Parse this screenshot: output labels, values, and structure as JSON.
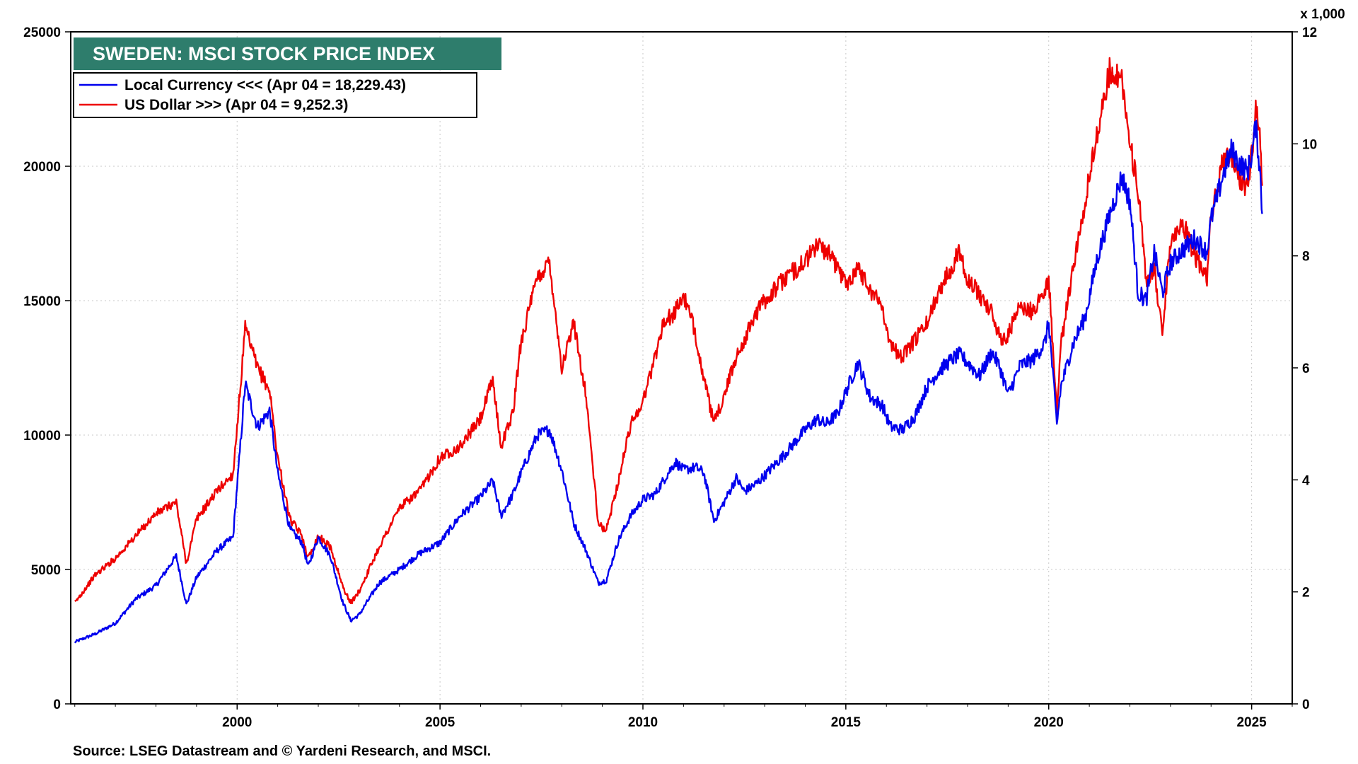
{
  "chart_data": {
    "type": "line",
    "title": "SWEDEN: MSCI STOCK PRICE INDEX",
    "source": "Source: LSEG Datastream and © Yardeni Research, and MSCI.",
    "x_range": [
      1995.9,
      2026.0
    ],
    "x_ticks": [
      "2000",
      "2005",
      "2010",
      "2015",
      "2020",
      "2025"
    ],
    "left_axis": {
      "range": [
        0,
        25000
      ],
      "ticks": [
        "0",
        "5000",
        "10000",
        "15000",
        "20000",
        "25000"
      ]
    },
    "right_axis": {
      "range": [
        0,
        12
      ],
      "unit_label": "x 1,000",
      "ticks": [
        "0",
        "2",
        "4",
        "6",
        "8",
        "10",
        "12"
      ]
    },
    "grid": true,
    "legend_placement": "top-left",
    "series": [
      {
        "name": "Local Currency <<< (Apr 04 = 18,229.43)",
        "axis": "left",
        "color": "#0000ee",
        "x": [
          1996.0,
          1996.5,
          1997.0,
          1997.5,
          1998.0,
          1998.5,
          1998.75,
          1999.0,
          1999.5,
          1999.9,
          2000.2,
          2000.5,
          2000.8,
          2001.0,
          2001.3,
          2001.6,
          2001.75,
          2002.0,
          2002.3,
          2002.6,
          2002.8,
          2003.0,
          2003.5,
          2004.0,
          2004.5,
          2005.0,
          2005.5,
          2006.0,
          2006.3,
          2006.5,
          2006.8,
          2007.0,
          2007.4,
          2007.7,
          2008.0,
          2008.3,
          2008.6,
          2008.9,
          2009.1,
          2009.4,
          2009.7,
          2010.0,
          2010.3,
          2010.5,
          2010.8,
          2011.0,
          2011.3,
          2011.5,
          2011.75,
          2012.0,
          2012.3,
          2012.5,
          2012.8,
          2013.0,
          2013.5,
          2014.0,
          2014.3,
          2014.5,
          2014.8,
          2015.0,
          2015.3,
          2015.6,
          2015.9,
          2016.1,
          2016.4,
          2016.7,
          2017.0,
          2017.3,
          2017.6,
          2017.8,
          2018.0,
          2018.3,
          2018.6,
          2018.8,
          2019.0,
          2019.3,
          2019.6,
          2019.9,
          2020.0,
          2020.2,
          2020.3,
          2020.6,
          2020.9,
          2021.2,
          2021.5,
          2021.8,
          2022.0,
          2022.2,
          2022.4,
          2022.6,
          2022.8,
          2023.0,
          2023.3,
          2023.6,
          2023.9,
          2024.0,
          2024.3,
          2024.5,
          2024.7,
          2024.9,
          2025.0,
          2025.1,
          2025.2,
          2025.26
        ],
        "y": [
          2300,
          2600,
          3000,
          3900,
          4400,
          5500,
          3700,
          4700,
          5700,
          6200,
          11900,
          10300,
          10900,
          8600,
          6500,
          6000,
          5100,
          6200,
          5500,
          3800,
          3100,
          3300,
          4500,
          5000,
          5600,
          6000,
          7000,
          7700,
          8300,
          7000,
          7800,
          8600,
          10000,
          10200,
          8700,
          6700,
          5700,
          4500,
          4600,
          6100,
          7000,
          7600,
          7800,
          8300,
          9000,
          8700,
          8800,
          8600,
          6800,
          7500,
          8400,
          7900,
          8200,
          8500,
          9300,
          10200,
          10600,
          10400,
          10800,
          11600,
          12700,
          11400,
          11100,
          10300,
          10200,
          10700,
          11800,
          12400,
          12800,
          13000,
          12700,
          12200,
          13100,
          12500,
          11500,
          12600,
          12800,
          13400,
          14200,
          10400,
          11800,
          13400,
          14400,
          16600,
          18200,
          19600,
          18700,
          15300,
          15000,
          16800,
          15300,
          16400,
          16900,
          17300,
          16800,
          18000,
          19700,
          20600,
          20100,
          19800,
          20400,
          21500,
          20000,
          18229
        ]
      },
      {
        "name": "US Dollar >>> (Apr 04 = 9,252.3)",
        "axis": "right",
        "color": "#ee0000",
        "x": [
          1996.0,
          1996.5,
          1997.0,
          1997.5,
          1998.0,
          1998.5,
          1998.75,
          1999.0,
          1999.5,
          1999.9,
          2000.2,
          2000.5,
          2000.8,
          2001.0,
          2001.3,
          2001.6,
          2001.75,
          2002.0,
          2002.3,
          2002.6,
          2002.8,
          2003.0,
          2003.5,
          2004.0,
          2004.5,
          2005.0,
          2005.5,
          2006.0,
          2006.3,
          2006.5,
          2006.8,
          2007.0,
          2007.4,
          2007.7,
          2008.0,
          2008.3,
          2008.6,
          2008.9,
          2009.1,
          2009.4,
          2009.7,
          2010.0,
          2010.3,
          2010.5,
          2010.8,
          2011.0,
          2011.3,
          2011.5,
          2011.75,
          2012.0,
          2012.3,
          2012.5,
          2012.8,
          2013.0,
          2013.5,
          2014.0,
          2014.3,
          2014.5,
          2014.8,
          2015.0,
          2015.3,
          2015.6,
          2015.9,
          2016.1,
          2016.4,
          2016.7,
          2017.0,
          2017.3,
          2017.6,
          2017.8,
          2018.0,
          2018.3,
          2018.6,
          2018.8,
          2019.0,
          2019.3,
          2019.6,
          2019.9,
          2020.0,
          2020.2,
          2020.3,
          2020.6,
          2020.9,
          2021.2,
          2021.5,
          2021.8,
          2022.0,
          2022.2,
          2022.4,
          2022.6,
          2022.8,
          2023.0,
          2023.3,
          2023.6,
          2023.9,
          2024.0,
          2024.3,
          2024.5,
          2024.7,
          2024.9,
          2025.0,
          2025.1,
          2025.2,
          2025.26
        ],
        "y": [
          1.8,
          2.3,
          2.6,
          3.0,
          3.4,
          3.6,
          2.5,
          3.3,
          3.8,
          4.1,
          6.7,
          6.0,
          5.6,
          4.4,
          3.3,
          3.0,
          2.6,
          3.0,
          2.8,
          2.1,
          1.8,
          2.0,
          2.8,
          3.5,
          3.8,
          4.4,
          4.6,
          5.1,
          5.8,
          4.6,
          5.2,
          6.5,
          7.6,
          7.9,
          6.0,
          6.8,
          5.5,
          3.2,
          3.1,
          4.0,
          5.0,
          5.4,
          6.2,
          6.8,
          7.0,
          7.3,
          6.6,
          5.8,
          5.0,
          5.5,
          6.2,
          6.5,
          7.0,
          7.2,
          7.6,
          7.9,
          8.2,
          8.1,
          7.8,
          7.5,
          7.8,
          7.4,
          7.1,
          6.4,
          6.2,
          6.5,
          6.8,
          7.4,
          7.8,
          8.1,
          7.6,
          7.3,
          7.0,
          6.5,
          6.6,
          7.1,
          7.0,
          7.4,
          7.6,
          5.2,
          6.4,
          7.8,
          9.0,
          10.2,
          11.3,
          11.2,
          10.0,
          9.2,
          7.5,
          7.8,
          6.6,
          8.3,
          8.6,
          8.0,
          7.6,
          8.7,
          9.7,
          9.8,
          9.4,
          9.2,
          9.8,
          10.6,
          10.4,
          9.25
        ]
      }
    ]
  }
}
